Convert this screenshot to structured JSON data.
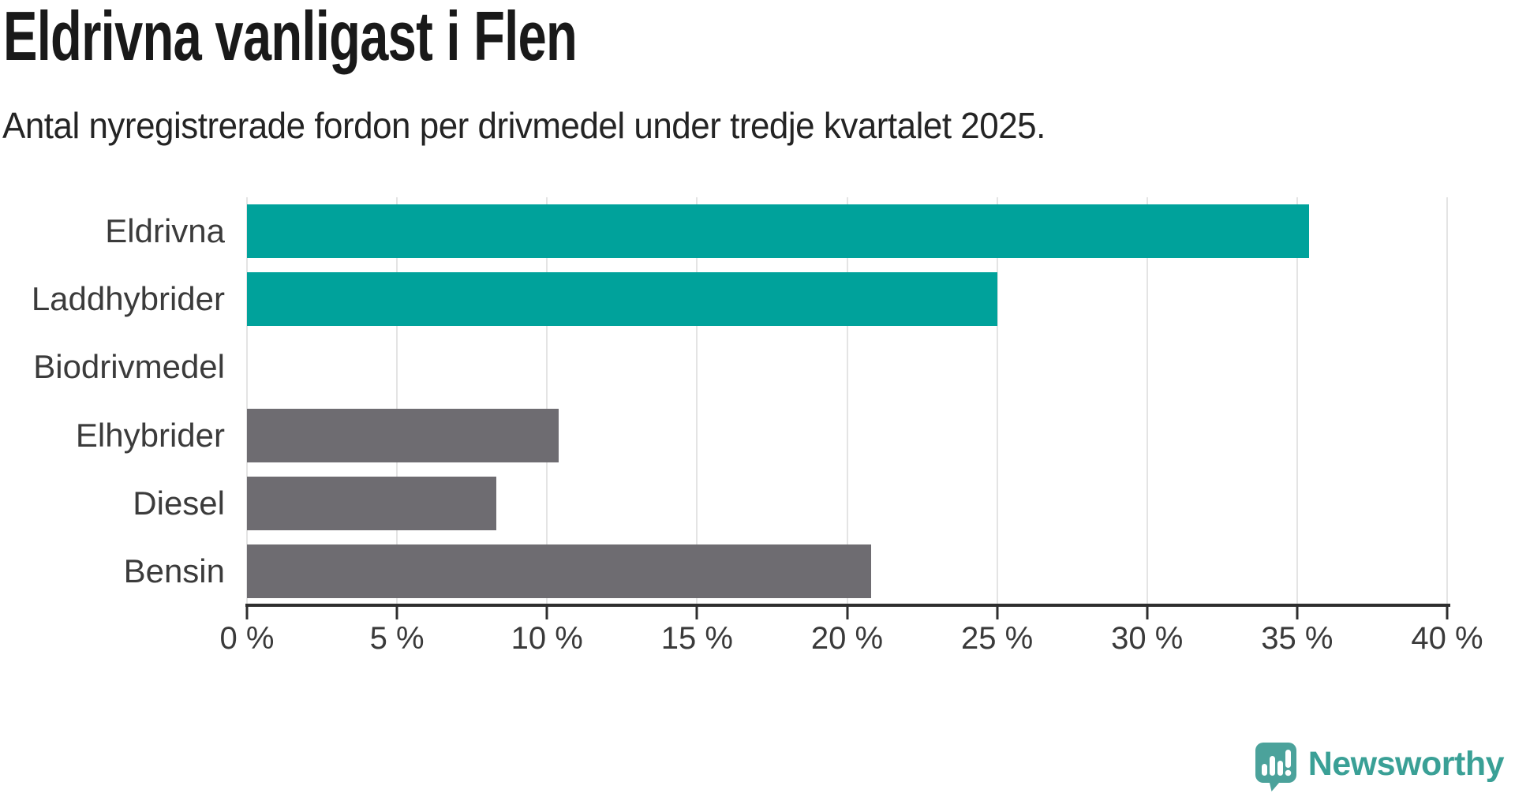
{
  "header": {
    "title": "Eldrivna vanligast i Flen",
    "subtitle": "Antal nyregistrerade fordon per drivmedel under tredje kvartalet 2025."
  },
  "chart_data": {
    "type": "bar",
    "orientation": "horizontal",
    "title": "Eldrivna vanligast i Flen",
    "subtitle": "Antal nyregistrerade fordon per drivmedel under tredje kvartalet 2025.",
    "categories": [
      "Eldrivna",
      "Laddhybrider",
      "Biodrivmedel",
      "Elhybrider",
      "Diesel",
      "Bensin"
    ],
    "values": [
      35.4,
      25.0,
      0,
      10.4,
      8.3,
      20.8
    ],
    "unit": "%",
    "xlim": [
      0,
      40
    ],
    "x_tick_values": [
      0,
      5,
      10,
      15,
      20,
      25,
      30,
      35,
      40
    ],
    "x_tick_labels": [
      "0 %",
      "5 %",
      "10 %",
      "15 %",
      "20 %",
      "25 %",
      "30 %",
      "35 %",
      "40 %"
    ],
    "bar_colors": [
      "#00a29b",
      "#00a29b",
      "#6e6c71",
      "#6e6c71",
      "#6e6c71",
      "#6e6c71"
    ],
    "grid": true,
    "legend": false
  },
  "colors": {
    "teal": "#00a29b",
    "gray": "#6e6c71",
    "gridline": "#e4e4e4",
    "axis": "#2e2e2e",
    "brand_teal": "#3aa096",
    "brand_bubble": "#4ba29b"
  },
  "footer": {
    "brand": "Newsworthy",
    "logo_icon": "speech-bubble-with-bar-chart-and-exclamation"
  }
}
